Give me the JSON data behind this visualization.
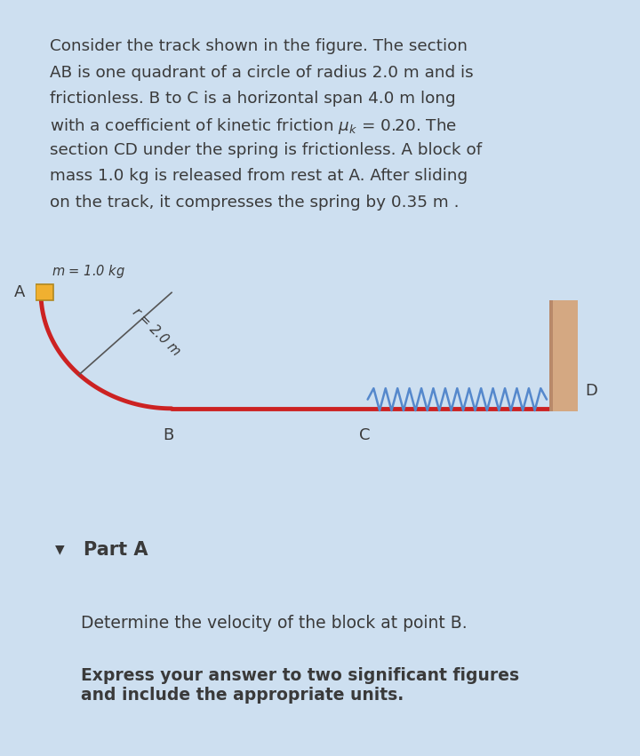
{
  "bg_color_page": "#cddff0",
  "bg_color_desc_box": "#cddff0",
  "bg_color_diag_box": "#ffffff",
  "bg_color_parta": "#f0f0f0",
  "bg_color_question": "#ffffff",
  "text_color": "#3a3a3a",
  "track_color": "#cc2222",
  "block_color": "#f0b030",
  "wall_color_light": "#d4a882",
  "wall_color_dark": "#b8896a",
  "spring_color": "#5588cc",
  "radius_line_color": "#555555",
  "border_color": "#aaaaaa",
  "lines": [
    "Consider the track shown in the figure. The section",
    "AB is one quadrant of a circle of radius 2.0 m and is",
    "frictionless. B to C is a horizontal span 4.0 m long",
    "with a coefficient of kinetic friction $\\mu_k$ = 0.20. The",
    "section CD under the spring is frictionless. A block of",
    "mass 1.0 kg is released from rest at A. After sliding",
    "on the track, it compresses the spring by 0.35 m ."
  ],
  "mass_label": "$m$ = 1.0 kg",
  "radius_label": "$r$ = 2.0 m",
  "label_A": "A",
  "label_B": "B",
  "label_C": "C",
  "label_D": "D",
  "part_label": "Part A",
  "question_text": "Determine the velocity of the block at point B.",
  "bold_text": "Express your answer to two significant figures\nand include the appropriate units."
}
